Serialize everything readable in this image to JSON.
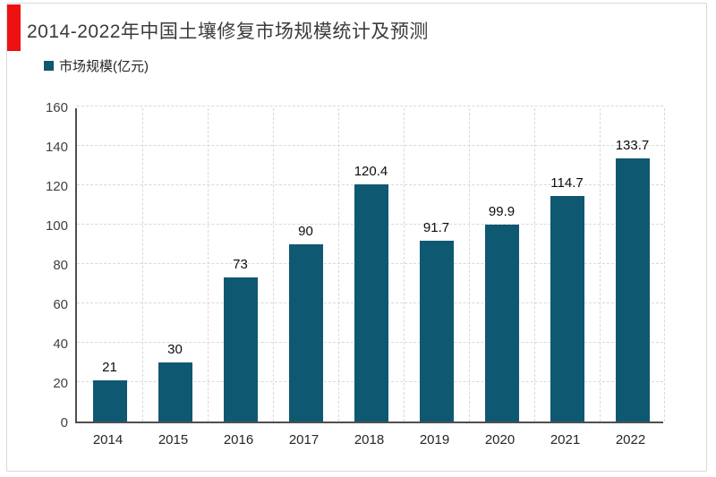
{
  "header": {
    "title": "2014-2022年中国土壤修复市场规模统计及预测",
    "accent_color": "#ee1111"
  },
  "legend": {
    "label": "市场规模(亿元)",
    "swatch_color": "#0f5872"
  },
  "chart_data": {
    "type": "bar",
    "title": "2014-2022年中国土壤修复市场规模统计及预测",
    "series_name": "市场规模(亿元)",
    "categories": [
      "2014",
      "2015",
      "2016",
      "2017",
      "2018",
      "2019",
      "2020",
      "2021",
      "2022"
    ],
    "values": [
      21,
      30,
      73,
      90,
      120.4,
      91.7,
      99.9,
      114.7,
      133.7
    ],
    "xlabel": "",
    "ylabel": "",
    "ylim": [
      0,
      160
    ],
    "ytick_step": 20,
    "yticks": [
      0,
      20,
      40,
      60,
      80,
      100,
      120,
      140,
      160
    ],
    "grid": true,
    "grid_style": "dashed",
    "legend_position": "top-left",
    "bar_color": "#0f5872",
    "axis_color": "#4f4f4f",
    "grid_color": "#d9d9d9"
  }
}
